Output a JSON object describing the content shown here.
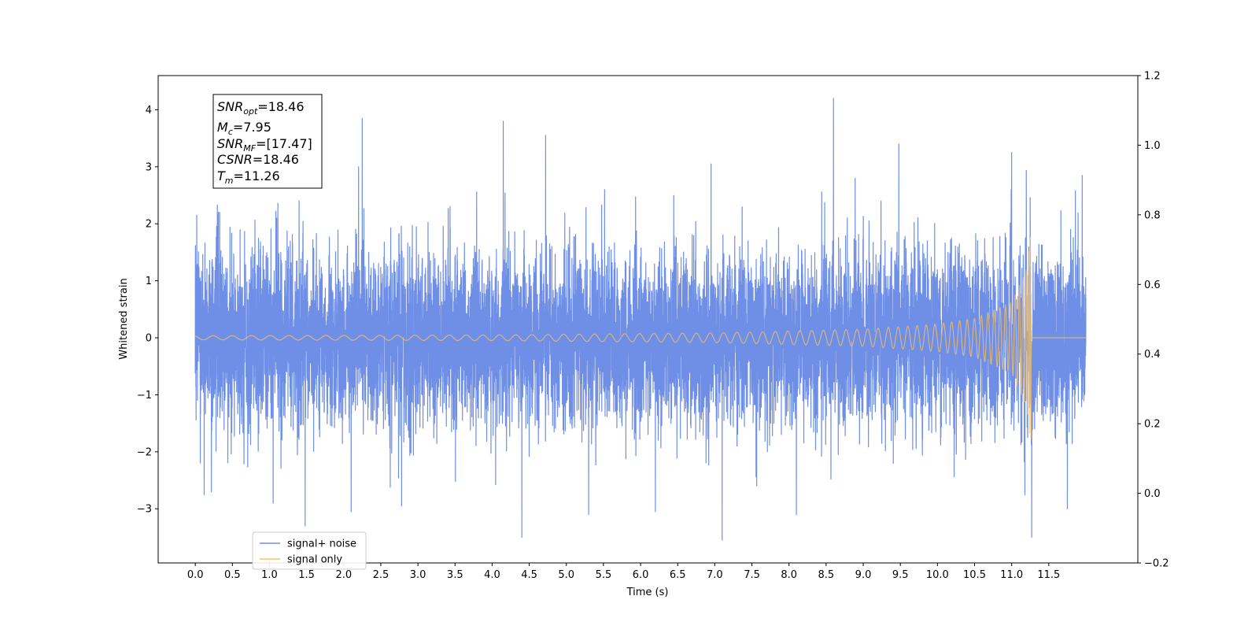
{
  "chart_data": {
    "type": "line",
    "xlabel": "Time (s)",
    "ylabel": "Whitened strain",
    "xlim": [
      -0.5,
      12.7
    ],
    "ylim": [
      -3.95,
      4.6
    ],
    "y2lim": [
      -0.2,
      1.2
    ],
    "x_ticks": [
      "0.0",
      "0.5",
      "1.0",
      "1.5",
      "2.0",
      "2.5",
      "3.0",
      "3.5",
      "4.0",
      "4.5",
      "5.0",
      "5.5",
      "6.0",
      "6.5",
      "7.0",
      "7.5",
      "8.0",
      "8.5",
      "9.0",
      "9.5",
      "10.0",
      "10.5",
      "11.0",
      "11.5"
    ],
    "y_ticks": [
      "−3",
      "−2",
      "−1",
      "0",
      "1",
      "2",
      "3",
      "4"
    ],
    "y2_ticks": [
      "−0.2",
      "0.0",
      "0.2",
      "0.4",
      "0.6",
      "0.8",
      "1.0",
      "1.2"
    ],
    "series": [
      {
        "name": "signal+ noise",
        "color": "#6f8fe6",
        "kind": "gaussian-noise-plus-chirp",
        "x_range": [
          0.0,
          12.0
        ],
        "noise_std": 0.75,
        "peaks": [
          {
            "x": 0.02,
            "y": 2.15
          },
          {
            "x": 0.12,
            "y": -2.75
          },
          {
            "x": 0.33,
            "y": 2.2
          },
          {
            "x": 1.05,
            "y": -2.9
          },
          {
            "x": 1.48,
            "y": -3.3
          },
          {
            "x": 2.25,
            "y": 3.85
          },
          {
            "x": 2.2,
            "y": 3.0
          },
          {
            "x": 2.1,
            "y": -3.05
          },
          {
            "x": 2.78,
            "y": -2.95
          },
          {
            "x": 4.15,
            "y": 3.8
          },
          {
            "x": 4.4,
            "y": -3.5
          },
          {
            "x": 4.72,
            "y": 3.55
          },
          {
            "x": 5.3,
            "y": -3.1
          },
          {
            "x": 6.2,
            "y": -3.05
          },
          {
            "x": 6.95,
            "y": 3.05
          },
          {
            "x": 7.1,
            "y": -3.55
          },
          {
            "x": 8.1,
            "y": -3.1
          },
          {
            "x": 8.6,
            "y": 4.2
          },
          {
            "x": 9.48,
            "y": 3.4
          },
          {
            "x": 11.0,
            "y": 3.25
          },
          {
            "x": 11.27,
            "y": -3.5
          },
          {
            "x": 11.75,
            "y": -3.0
          },
          {
            "x": 11.95,
            "y": 2.85
          }
        ]
      },
      {
        "name": "signal only",
        "color": "#ffc35a",
        "kind": "chirp",
        "x_range": [
          0.0,
          11.28
        ],
        "merger_time": 11.26,
        "envelope": [
          {
            "x": 0.0,
            "y": 0.035
          },
          {
            "x": 4.0,
            "y": 0.05
          },
          {
            "x": 7.0,
            "y": 0.085
          },
          {
            "x": 9.0,
            "y": 0.15
          },
          {
            "x": 10.0,
            "y": 0.24
          },
          {
            "x": 10.5,
            "y": 0.34
          },
          {
            "x": 11.0,
            "y": 0.62
          },
          {
            "x": 11.2,
            "y": 1.2
          },
          {
            "x": 11.26,
            "y": 1.9
          }
        ],
        "post_merger_value": 0.0,
        "post_merger_x_range": [
          11.28,
          12.0
        ]
      }
    ],
    "annotation": {
      "lines": [
        {
          "base": "SNR",
          "sub": "opt",
          "rest": "=18.46"
        },
        {
          "base": "M",
          "sub": "c",
          "rest": "=7.95"
        },
        {
          "base": "SNR",
          "sub": "MF",
          "rest": "=[17.47]"
        },
        {
          "base": "CSNR",
          "sub": "",
          "rest": "=18.46"
        },
        {
          "base": "T",
          "sub": "m",
          "rest": "=11.26"
        }
      ]
    },
    "legend": {
      "placement": "lower-left",
      "entries": [
        {
          "label": "signal+ noise",
          "color": "#6f8fe6"
        },
        {
          "label": "signal only",
          "color": "#ffc35a"
        }
      ]
    },
    "grid": false
  }
}
